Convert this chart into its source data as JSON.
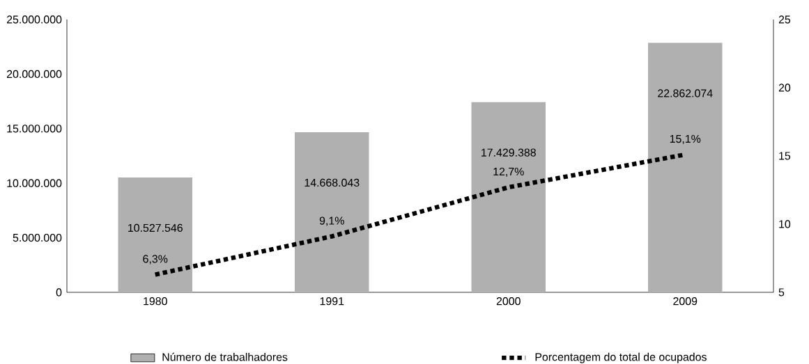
{
  "chart_data": {
    "type": "bar",
    "categories": [
      "1980",
      "1991",
      "2000",
      "2009"
    ],
    "series": [
      {
        "name": "Número de trabalhadores",
        "color": "#b0b0b0",
        "values": [
          10527546,
          14668043,
          17429388,
          22862074
        ],
        "value_labels": [
          "10.527.546",
          "14.668.043",
          "17.429.388",
          "22.862.074"
        ]
      },
      {
        "name": "Porcentagem do total de ocupados",
        "type": "line",
        "axis": "y2",
        "color": "#000000",
        "line_style": "dotted",
        "values": [
          6.3,
          9.1,
          12.7,
          15.1
        ],
        "value_labels": [
          "6,3%",
          "9,1%",
          "12,7%",
          "15,1%"
        ]
      }
    ],
    "ylim": [
      0,
      25000000
    ],
    "yticks": [
      {
        "value": 0,
        "label": "0"
      },
      {
        "value": 5000000,
        "label": "5.000.000"
      },
      {
        "value": 10000000,
        "label": "10.000.000"
      },
      {
        "value": 15000000,
        "label": "15.000.000"
      },
      {
        "value": 20000000,
        "label": "20.000.000"
      },
      {
        "value": 25000000,
        "label": "25.000.000"
      }
    ],
    "y2lim": [
      5,
      25
    ],
    "y2ticks": [
      5,
      10,
      15,
      20,
      25
    ],
    "legend": "bottom",
    "grid": false
  }
}
